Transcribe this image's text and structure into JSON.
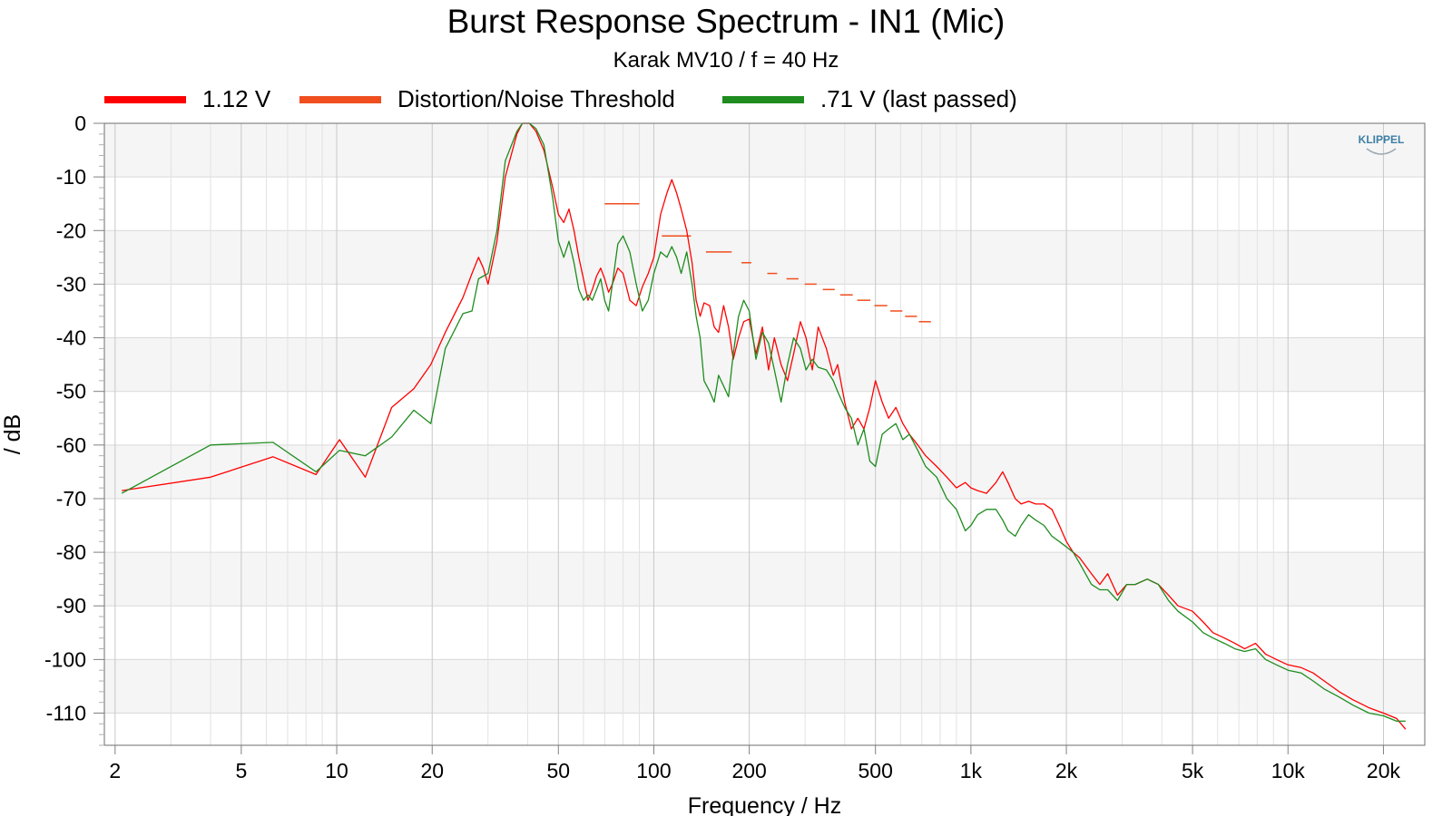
{
  "chart_data": {
    "type": "line",
    "title": "Burst Response Spectrum - IN1 (Mic)",
    "subtitle": "Karak MV10 / f = 40 Hz",
    "xlabel": "Frequency / Hz",
    "ylabel": "/ dB",
    "xscale": "log",
    "xlim": [
      1.85,
      27000
    ],
    "ylim": [
      -116,
      0
    ],
    "x_ticks": [
      2,
      5,
      10,
      20,
      50,
      100,
      200,
      500,
      1000,
      2000,
      5000,
      10000,
      20000
    ],
    "x_tick_labels": [
      "2",
      "5",
      "10",
      "20",
      "50",
      "100",
      "200",
      "500",
      "1k",
      "2k",
      "5k",
      "10k",
      "20k"
    ],
    "y_ticks": [
      0,
      -10,
      -20,
      -30,
      -40,
      -50,
      -60,
      -70,
      -80,
      -90,
      -100,
      -110
    ],
    "y_tick_labels": [
      "0",
      "-10",
      "-20",
      "-30",
      "-40",
      "-50",
      "-60",
      "-70",
      "-80",
      "-90",
      "-100",
      "-110"
    ],
    "grid": true,
    "legend_position": "top",
    "series": [
      {
        "name": "1.12 V",
        "color": "#ff0000",
        "style": "line",
        "points": [
          [
            2.1,
            -68.5
          ],
          [
            4,
            -66
          ],
          [
            6.3,
            -62.2
          ],
          [
            8.6,
            -65.5
          ],
          [
            10.2,
            -59
          ],
          [
            12.3,
            -66
          ],
          [
            14.9,
            -53
          ],
          [
            17.5,
            -49.5
          ],
          [
            19.8,
            -45
          ],
          [
            22,
            -39
          ],
          [
            25,
            -32.5
          ],
          [
            26.7,
            -28
          ],
          [
            28,
            -25
          ],
          [
            29,
            -27
          ],
          [
            30,
            -30
          ],
          [
            32,
            -22
          ],
          [
            34,
            -10
          ],
          [
            37,
            -2
          ],
          [
            38.5,
            0
          ],
          [
            40.5,
            0
          ],
          [
            42.5,
            -1.5
          ],
          [
            45,
            -5
          ],
          [
            48,
            -12
          ],
          [
            50,
            -17
          ],
          [
            52,
            -18.5
          ],
          [
            54,
            -16
          ],
          [
            56,
            -20
          ],
          [
            58,
            -25
          ],
          [
            60,
            -29
          ],
          [
            62,
            -33
          ],
          [
            64,
            -31
          ],
          [
            66,
            -28.5
          ],
          [
            68,
            -27
          ],
          [
            70,
            -29
          ],
          [
            72,
            -31.5
          ],
          [
            74,
            -30
          ],
          [
            77,
            -27
          ],
          [
            80,
            -28
          ],
          [
            84,
            -33
          ],
          [
            88,
            -34
          ],
          [
            92,
            -30.5
          ],
          [
            96,
            -28
          ],
          [
            100,
            -25
          ],
          [
            105,
            -17
          ],
          [
            110,
            -13
          ],
          [
            114,
            -10.5
          ],
          [
            118,
            -13
          ],
          [
            122,
            -16
          ],
          [
            127,
            -20
          ],
          [
            132,
            -26
          ],
          [
            136,
            -33
          ],
          [
            140,
            -36
          ],
          [
            144,
            -33.5
          ],
          [
            150,
            -34
          ],
          [
            155,
            -38
          ],
          [
            160,
            -39
          ],
          [
            166,
            -34
          ],
          [
            172,
            -38
          ],
          [
            178,
            -44
          ],
          [
            185,
            -40
          ],
          [
            192,
            -37
          ],
          [
            200,
            -36.5
          ],
          [
            210,
            -43
          ],
          [
            220,
            -38
          ],
          [
            230,
            -46
          ],
          [
            240,
            -40
          ],
          [
            252,
            -45
          ],
          [
            264,
            -48
          ],
          [
            276,
            -43
          ],
          [
            290,
            -37
          ],
          [
            302,
            -40
          ],
          [
            316,
            -46
          ],
          [
            330,
            -38
          ],
          [
            350,
            -42
          ],
          [
            368,
            -47
          ],
          [
            380,
            -45
          ],
          [
            400,
            -52
          ],
          [
            420,
            -57
          ],
          [
            440,
            -55
          ],
          [
            460,
            -57
          ],
          [
            480,
            -53
          ],
          [
            500,
            -48
          ],
          [
            525,
            -52
          ],
          [
            550,
            -55
          ],
          [
            580,
            -53
          ],
          [
            610,
            -56
          ],
          [
            640,
            -58
          ],
          [
            680,
            -60
          ],
          [
            720,
            -62
          ],
          [
            780,
            -64
          ],
          [
            840,
            -66
          ],
          [
            900,
            -68
          ],
          [
            960,
            -67
          ],
          [
            1000,
            -68
          ],
          [
            1050,
            -68.5
          ],
          [
            1120,
            -69
          ],
          [
            1200,
            -67
          ],
          [
            1260,
            -65
          ],
          [
            1310,
            -67
          ],
          [
            1380,
            -70
          ],
          [
            1440,
            -71
          ],
          [
            1520,
            -70.5
          ],
          [
            1600,
            -71
          ],
          [
            1700,
            -71
          ],
          [
            1800,
            -72
          ],
          [
            1900,
            -75
          ],
          [
            2000,
            -78
          ],
          [
            2100,
            -80
          ],
          [
            2200,
            -81
          ],
          [
            2400,
            -84
          ],
          [
            2550,
            -86
          ],
          [
            2700,
            -84
          ],
          [
            2900,
            -88
          ],
          [
            3100,
            -86
          ],
          [
            3300,
            -86
          ],
          [
            3600,
            -85
          ],
          [
            3900,
            -86
          ],
          [
            4200,
            -88
          ],
          [
            4500,
            -90
          ],
          [
            5000,
            -91
          ],
          [
            5400,
            -93
          ],
          [
            5800,
            -95
          ],
          [
            6300,
            -96
          ],
          [
            6800,
            -97
          ],
          [
            7300,
            -98
          ],
          [
            7900,
            -97
          ],
          [
            8500,
            -99
          ],
          [
            9200,
            -100
          ],
          [
            10000,
            -101
          ],
          [
            11000,
            -101.5
          ],
          [
            12000,
            -102.5
          ],
          [
            13000,
            -104
          ],
          [
            14500,
            -106
          ],
          [
            16000,
            -107.5
          ],
          [
            18000,
            -109
          ],
          [
            20000,
            -110
          ],
          [
            22000,
            -111
          ],
          [
            23500,
            -113
          ]
        ]
      },
      {
        "name": "Distortion/Noise Threshold",
        "color": "#f04e1e",
        "style": "segments",
        "segments": [
          [
            70,
            90,
            -15
          ],
          [
            106,
            131,
            -21
          ],
          [
            146,
            176,
            -24
          ],
          [
            189,
            203,
            -26
          ],
          [
            228,
            245,
            -28
          ],
          [
            262,
            286,
            -29
          ],
          [
            299,
            326,
            -30
          ],
          [
            341,
            372,
            -31
          ],
          [
            387,
            424,
            -32
          ],
          [
            438,
            482,
            -33
          ],
          [
            496,
            545,
            -34
          ],
          [
            557,
            608,
            -35
          ],
          [
            620,
            676,
            -36
          ],
          [
            685,
            748,
            -37
          ]
        ]
      },
      {
        "name": ".71 V (last passed)",
        "color": "#1e8c1e",
        "style": "line",
        "points": [
          [
            2.1,
            -69
          ],
          [
            4,
            -60
          ],
          [
            6.3,
            -59.5
          ],
          [
            8.6,
            -65
          ],
          [
            10.2,
            -61
          ],
          [
            12.3,
            -62
          ],
          [
            14.9,
            -58.5
          ],
          [
            17.5,
            -53.5
          ],
          [
            19.8,
            -56
          ],
          [
            22,
            -42
          ],
          [
            25,
            -35.5
          ],
          [
            26.7,
            -35
          ],
          [
            28,
            -29
          ],
          [
            29,
            -28.5
          ],
          [
            30,
            -28
          ],
          [
            32,
            -20
          ],
          [
            34,
            -7
          ],
          [
            37,
            -1.5
          ],
          [
            38.5,
            0
          ],
          [
            40.5,
            0
          ],
          [
            42.5,
            -1
          ],
          [
            45,
            -4
          ],
          [
            48,
            -14
          ],
          [
            50,
            -22
          ],
          [
            52,
            -25
          ],
          [
            54,
            -22
          ],
          [
            56,
            -26
          ],
          [
            58,
            -31
          ],
          [
            60,
            -33
          ],
          [
            62,
            -32
          ],
          [
            64,
            -33
          ],
          [
            66,
            -31
          ],
          [
            68,
            -29
          ],
          [
            70,
            -33
          ],
          [
            72,
            -35
          ],
          [
            74,
            -30
          ],
          [
            77,
            -22.5
          ],
          [
            80,
            -21
          ],
          [
            84,
            -24
          ],
          [
            88,
            -30
          ],
          [
            92,
            -35
          ],
          [
            96,
            -33
          ],
          [
            100,
            -28
          ],
          [
            105,
            -24
          ],
          [
            110,
            -25
          ],
          [
            114,
            -23
          ],
          [
            118,
            -25
          ],
          [
            122,
            -28
          ],
          [
            127,
            -24
          ],
          [
            132,
            -30
          ],
          [
            136,
            -36
          ],
          [
            140,
            -40
          ],
          [
            144,
            -48
          ],
          [
            150,
            -50
          ],
          [
            155,
            -52
          ],
          [
            160,
            -47
          ],
          [
            166,
            -49
          ],
          [
            172,
            -51
          ],
          [
            178,
            -43
          ],
          [
            185,
            -36
          ],
          [
            192,
            -33
          ],
          [
            200,
            -35
          ],
          [
            210,
            -44
          ],
          [
            220,
            -39
          ],
          [
            230,
            -41
          ],
          [
            240,
            -46
          ],
          [
            252,
            -52
          ],
          [
            264,
            -45
          ],
          [
            276,
            -40
          ],
          [
            290,
            -42
          ],
          [
            302,
            -46
          ],
          [
            316,
            -44
          ],
          [
            330,
            -45.5
          ],
          [
            350,
            -46
          ],
          [
            368,
            -48
          ],
          [
            380,
            -50
          ],
          [
            400,
            -53
          ],
          [
            420,
            -55
          ],
          [
            440,
            -60
          ],
          [
            460,
            -57
          ],
          [
            480,
            -63
          ],
          [
            500,
            -64
          ],
          [
            525,
            -58
          ],
          [
            550,
            -57
          ],
          [
            580,
            -56
          ],
          [
            610,
            -59
          ],
          [
            640,
            -58
          ],
          [
            680,
            -61
          ],
          [
            720,
            -64
          ],
          [
            780,
            -66
          ],
          [
            840,
            -70
          ],
          [
            900,
            -72
          ],
          [
            960,
            -76
          ],
          [
            1000,
            -75
          ],
          [
            1050,
            -73
          ],
          [
            1120,
            -72
          ],
          [
            1200,
            -72
          ],
          [
            1260,
            -74
          ],
          [
            1310,
            -76
          ],
          [
            1380,
            -77
          ],
          [
            1440,
            -75
          ],
          [
            1520,
            -73
          ],
          [
            1600,
            -74
          ],
          [
            1700,
            -75
          ],
          [
            1800,
            -77
          ],
          [
            1900,
            -78
          ],
          [
            2000,
            -79
          ],
          [
            2100,
            -80
          ],
          [
            2200,
            -82
          ],
          [
            2400,
            -86
          ],
          [
            2550,
            -87
          ],
          [
            2700,
            -87
          ],
          [
            2900,
            -89
          ],
          [
            3100,
            -86
          ],
          [
            3300,
            -86
          ],
          [
            3600,
            -85
          ],
          [
            3900,
            -86
          ],
          [
            4200,
            -89
          ],
          [
            4500,
            -91
          ],
          [
            5000,
            -93
          ],
          [
            5400,
            -95
          ],
          [
            5800,
            -96
          ],
          [
            6300,
            -97
          ],
          [
            6800,
            -98
          ],
          [
            7300,
            -98.5
          ],
          [
            7900,
            -98
          ],
          [
            8500,
            -100
          ],
          [
            9200,
            -101
          ],
          [
            10000,
            -102
          ],
          [
            11000,
            -102.5
          ],
          [
            12000,
            -104
          ],
          [
            13000,
            -105.5
          ],
          [
            14500,
            -107
          ],
          [
            16000,
            -108.5
          ],
          [
            18000,
            -110
          ],
          [
            20000,
            -110.5
          ],
          [
            22000,
            -111.5
          ],
          [
            23500,
            -111.5
          ]
        ]
      }
    ]
  },
  "logo": {
    "text": "KLIPPEL"
  }
}
